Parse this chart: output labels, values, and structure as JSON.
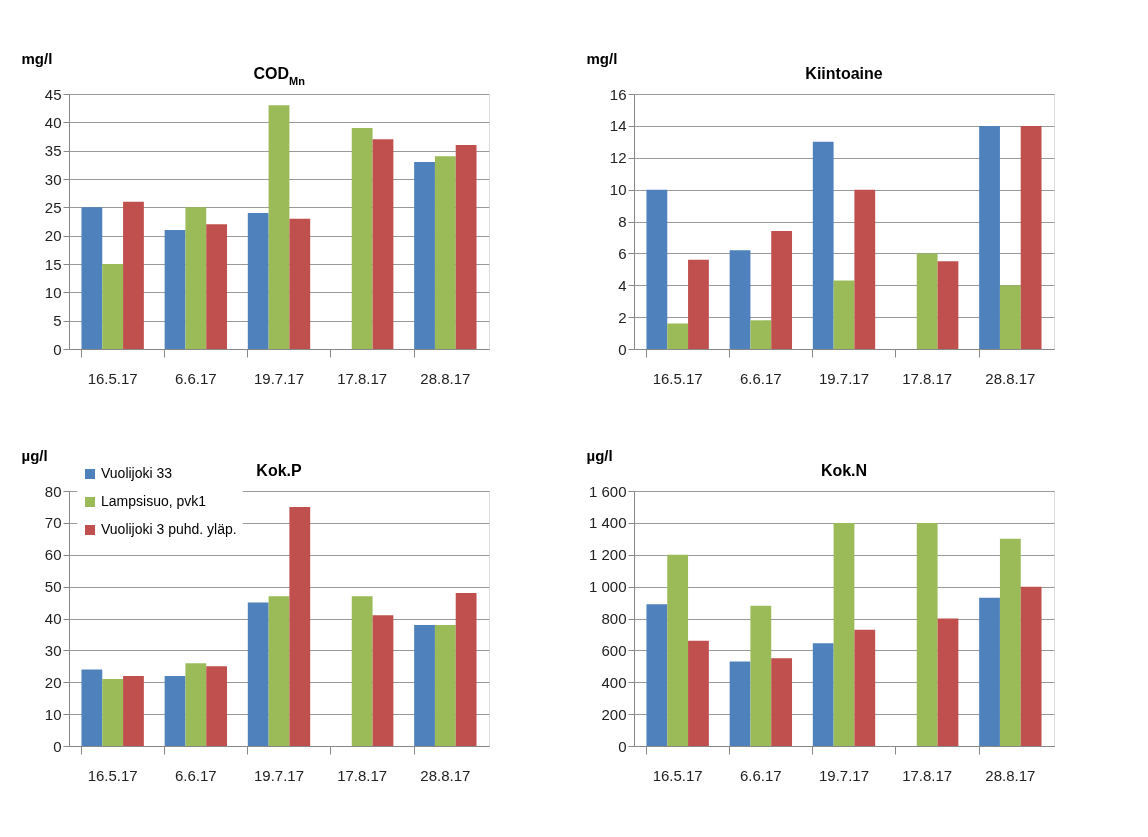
{
  "chart_data": [
    {
      "type": "bar",
      "title": "COD$_{Mn}$",
      "ylabel": "mg/l",
      "categories": [
        "16.5.17",
        "6.6.17",
        "19.7.17",
        "17.8.17",
        "28.8.17"
      ],
      "series": [
        {
          "color": "#4f81bd",
          "values": [
            25,
            21,
            24,
            null,
            33
          ]
        },
        {
          "color": "#9bbb59",
          "values": [
            15,
            25,
            43,
            39,
            34
          ]
        },
        {
          "color": "#c0504d",
          "values": [
            26,
            22,
            23,
            37,
            36
          ]
        }
      ],
      "ylim": [
        0,
        45
      ],
      "yticks": [
        0,
        5,
        10,
        15,
        20,
        25,
        30,
        35,
        40,
        45
      ],
      "grid": "y",
      "legend": false
    },
    {
      "type": "bar",
      "title": "Kiintoaine",
      "ylabel": "mg/l",
      "categories": [
        "16.5.17",
        "6.6.17",
        "19.7.17",
        "17.8.17",
        "28.8.17"
      ],
      "series": [
        {
          "color": "#4f81bd",
          "values": [
            10,
            6.2,
            13,
            null,
            14
          ]
        },
        {
          "color": "#9bbb59",
          "values": [
            1.6,
            1.8,
            4.3,
            6,
            4
          ]
        },
        {
          "color": "#c0504d",
          "values": [
            5.6,
            7.4,
            10,
            5.5,
            14
          ]
        }
      ],
      "ylim": [
        0,
        16
      ],
      "yticks": [
        0,
        2,
        4,
        6,
        8,
        10,
        12,
        14,
        16
      ],
      "grid": "y",
      "legend": false
    },
    {
      "type": "bar",
      "title": "Kok.P",
      "ylabel": "µg/l",
      "categories": [
        "16.5.17",
        "6.6.17",
        "19.7.17",
        "17.8.17",
        "28.8.17"
      ],
      "series": [
        {
          "name": "Vuolijoki 33",
          "color": "#4f81bd",
          "values": [
            24,
            22,
            45,
            null,
            38
          ]
        },
        {
          "name": "Lampsisuo, pvk1",
          "color": "#9bbb59",
          "values": [
            21,
            26,
            47,
            47,
            38
          ]
        },
        {
          "name": "Vuolijoki 3 puhd. yläp.",
          "color": "#c0504d",
          "values": [
            22,
            25,
            75,
            41,
            48
          ]
        }
      ],
      "ylim": [
        0,
        80
      ],
      "yticks": [
        0,
        10,
        20,
        30,
        40,
        50,
        60,
        70,
        80
      ],
      "grid": "y",
      "legend": "top left"
    },
    {
      "type": "bar",
      "title": "Kok.N",
      "ylabel": "µg/l",
      "categories": [
        "16.5.17",
        "6.6.17",
        "19.7.17",
        "17.8.17",
        "28.8.17"
      ],
      "series": [
        {
          "color": "#4f81bd",
          "values": [
            890,
            530,
            645,
            null,
            930
          ]
        },
        {
          "color": "#9bbb59",
          "values": [
            1200,
            880,
            1400,
            1400,
            1300
          ]
        },
        {
          "color": "#c0504d",
          "values": [
            660,
            550,
            730,
            800,
            1000
          ]
        }
      ],
      "ylim": [
        0,
        1600
      ],
      "yticks": [
        0,
        200,
        400,
        600,
        800,
        {
          "value": 1000,
          "label": "1 000"
        },
        {
          "value": 1200,
          "label": "1 200"
        },
        {
          "value": 1400,
          "label": "1 400"
        },
        {
          "value": 1600,
          "label": "1 600"
        }
      ],
      "grid": "y",
      "legend": false
    }
  ]
}
